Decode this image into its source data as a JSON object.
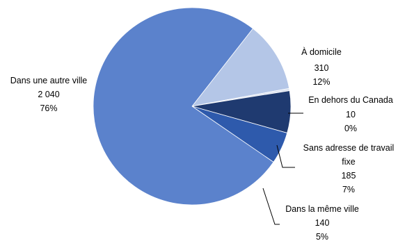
{
  "chart_data": {
    "type": "pie",
    "title": "",
    "slices": [
      {
        "name": "À domicile",
        "value": "310",
        "value_num": 310,
        "percent": "12%",
        "color": "#b4c6e7"
      },
      {
        "name": "En dehors du Canada",
        "value": "10",
        "value_num": 10,
        "percent": "0%",
        "color": "#dce3f1"
      },
      {
        "name": "Sans adresse de travail",
        "name2": "fixe",
        "value": "185",
        "value_num": 185,
        "percent": "7%",
        "color": "#1f3a70"
      },
      {
        "name": "Dans la même ville",
        "value": "140",
        "value_num": 140,
        "percent": "5%",
        "color": "#2e5aac"
      },
      {
        "name": "Dans une autre ville",
        "value": "2 040",
        "value_num": 2040,
        "percent": "76%",
        "color": "#5b82cc"
      }
    ]
  }
}
